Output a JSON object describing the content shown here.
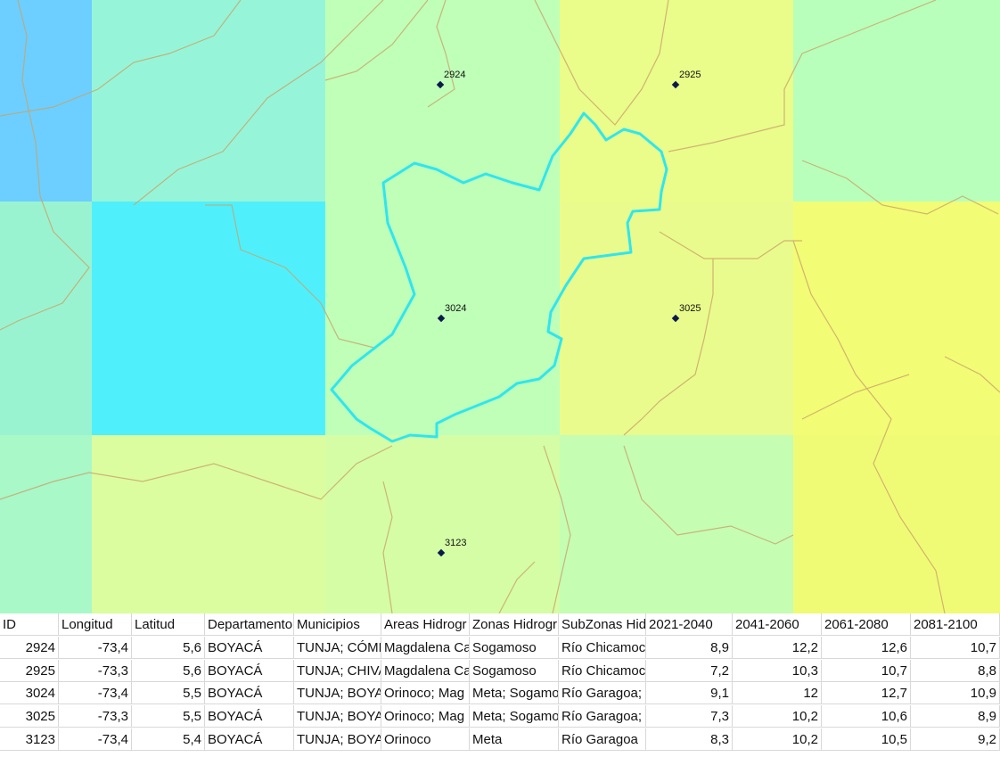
{
  "map": {
    "points": [
      {
        "label": "2924"
      },
      {
        "label": "2925"
      },
      {
        "label": "3024"
      },
      {
        "label": "3025"
      },
      {
        "label": "3123"
      }
    ]
  },
  "table": {
    "headers": [
      "ID",
      "Longitud",
      "Latitud",
      "Departamento",
      "Municipios",
      "Areas Hidrogr",
      "Zonas Hidrogr",
      "SubZonas Hidr",
      "2021-2040",
      "2041-2060",
      "2061-2080",
      "2081-2100"
    ],
    "rows": [
      [
        "2924",
        "-73,4",
        "5,6",
        "BOYACÁ",
        "TUNJA; CÓME",
        "Magdalena Ca",
        "Sogamoso",
        "Río Chicamoc",
        "8,9",
        "12,2",
        "12,6",
        "10,7"
      ],
      [
        "2925",
        "-73,3",
        "5,6",
        "BOYACÁ",
        "TUNJA; CHIVA",
        "Magdalena Ca",
        "Sogamoso",
        "Río Chicamoc",
        "7,2",
        "10,3",
        "10,7",
        "8,8"
      ],
      [
        "3024",
        "-73,4",
        "5,5",
        "BOYACÁ",
        "TUNJA; BOYA",
        "Orinoco; Mag",
        "Meta; Sogamo",
        "Río Garagoa;",
        "9,1",
        "12",
        "12,7",
        "10,9"
      ],
      [
        "3025",
        "-73,3",
        "5,5",
        "BOYACÁ",
        "TUNJA; BOYA",
        "Orinoco; Mag",
        "Meta; Sogamo",
        "Río Garagoa;",
        "7,3",
        "10,2",
        "10,6",
        "8,9"
      ],
      [
        "3123",
        "-73,4",
        "5,4",
        "BOYACÁ",
        "TUNJA; BOYA",
        "Orinoco",
        "Meta",
        "Río Garagoa",
        "8,3",
        "10,2",
        "10,5",
        "9,2"
      ]
    ]
  }
}
